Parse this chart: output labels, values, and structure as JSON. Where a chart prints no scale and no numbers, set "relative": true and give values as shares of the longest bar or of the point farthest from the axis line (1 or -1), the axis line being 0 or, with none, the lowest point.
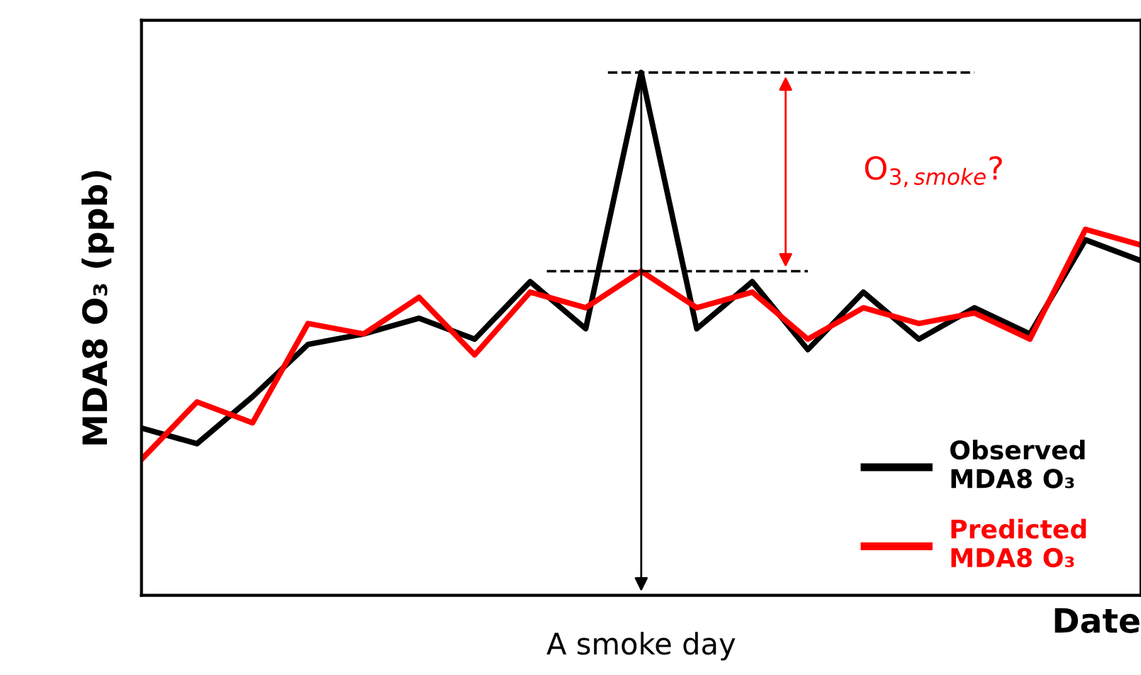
{
  "chart_data": {
    "type": "line",
    "relative": true,
    "ylabel": "MDA8 O₃ (ppb)",
    "xlabel": "Date",
    "categories": [
      null,
      null,
      null,
      null,
      null,
      null,
      null,
      null,
      null,
      null,
      null,
      null,
      null,
      null,
      null,
      null,
      null,
      null,
      null
    ],
    "series": [
      {
        "name": "Observed\nMDA8 O₃",
        "color": "#000000",
        "values": [
          0.32,
          0.29,
          0.38,
          0.48,
          0.5,
          0.53,
          0.49,
          0.6,
          0.51,
          1.0,
          0.51,
          0.6,
          0.47,
          0.58,
          0.49,
          0.55,
          0.5,
          0.68,
          0.64
        ]
      },
      {
        "name": "Predicted\nMDA8 O₃",
        "color": "#ff0000",
        "values": [
          0.26,
          0.37,
          0.33,
          0.52,
          0.5,
          0.57,
          0.46,
          0.58,
          0.55,
          0.62,
          0.55,
          0.58,
          0.49,
          0.55,
          0.52,
          0.54,
          0.49,
          0.7,
          0.67
        ]
      }
    ],
    "ref_lines": [
      {
        "axis": "y",
        "value": 1.0,
        "color": "#000000",
        "line_style": "dashed"
      },
      {
        "axis": "y",
        "value": 0.62,
        "color": "#000000",
        "line_style": "dashed"
      }
    ],
    "annotations": [
      "O$_{3,smoke}$?",
      "A smoke day"
    ],
    "legend": "bottom right",
    "grid": false
  }
}
